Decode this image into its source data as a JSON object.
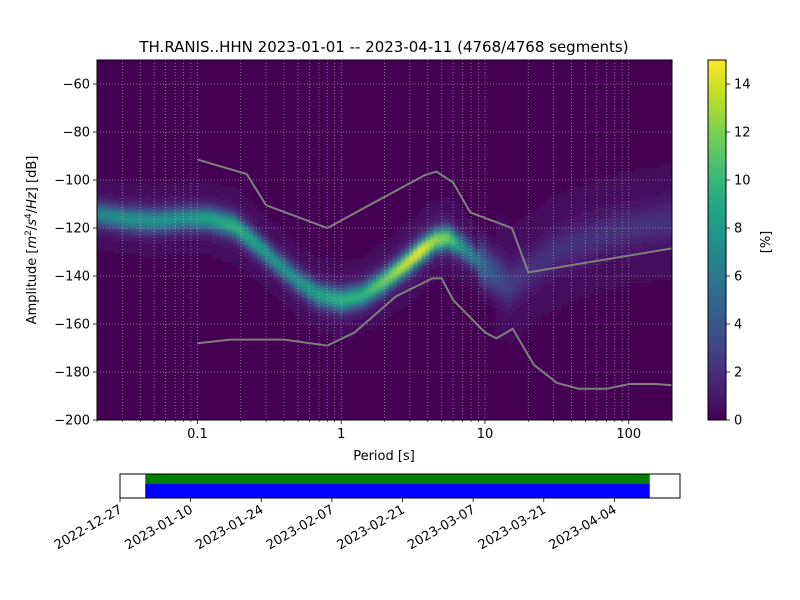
{
  "chart_data": [
    {
      "type": "heatmap",
      "title": "TH.RANIS..HHN   2023-01-01 -- 2023-04-11  (4768/4768 segments)",
      "xlabel": "Period [s]",
      "ylabel_parts": [
        "Amplitude [",
        "m",
        "2",
        "/",
        "s",
        "4",
        "/",
        "Hz",
        "] [dB]"
      ],
      "x_scale": "log",
      "xlim": [
        0.02,
        200
      ],
      "ylim": [
        -200,
        -50
      ],
      "x_ticks": [
        {
          "value": 0.1,
          "label": "0.1"
        },
        {
          "value": 1,
          "label": "1"
        },
        {
          "value": 10,
          "label": "10"
        },
        {
          "value": 100,
          "label": "100"
        }
      ],
      "y_ticks": [
        {
          "value": -60,
          "label": "−60"
        },
        {
          "value": -80,
          "label": "−80"
        },
        {
          "value": -100,
          "label": "−100"
        },
        {
          "value": -120,
          "label": "−120"
        },
        {
          "value": -140,
          "label": "−140"
        },
        {
          "value": -160,
          "label": "−160"
        },
        {
          "value": -180,
          "label": "−180"
        },
        {
          "value": -200,
          "label": "−200"
        }
      ],
      "grid": true,
      "colorbar": {
        "label": "[%]",
        "range": [
          0,
          15
        ],
        "ticks": [
          {
            "value": 0,
            "label": "0"
          },
          {
            "value": 2,
            "label": "2"
          },
          {
            "value": 4,
            "label": "4"
          },
          {
            "value": 6,
            "label": "6"
          },
          {
            "value": 8,
            "label": "8"
          },
          {
            "value": 10,
            "label": "10"
          },
          {
            "value": 12,
            "label": "12"
          },
          {
            "value": 14,
            "label": "14"
          }
        ]
      },
      "density_ridge": {
        "period": [
          0.02,
          0.03,
          0.05,
          0.08,
          0.12,
          0.18,
          0.25,
          0.35,
          0.5,
          0.7,
          1.0,
          1.4,
          2.0,
          2.8,
          3.5,
          4.5,
          5.5,
          7.0,
          10,
          15,
          20,
          30,
          50,
          100,
          200
        ],
        "amplitude_db": [
          -114,
          -116,
          -117,
          -116,
          -116,
          -119,
          -126,
          -134,
          -142,
          -148,
          -150,
          -148,
          -142,
          -135,
          -130,
          -125,
          -124,
          -128,
          -136,
          -144,
          -138,
          -130,
          -125,
          -120,
          -117
        ],
        "peak_percent": [
          6,
          7,
          7,
          7,
          8,
          9,
          8,
          7,
          7,
          8,
          9,
          9,
          11,
          13,
          14,
          12,
          11,
          7,
          4,
          2,
          1.5,
          1.5,
          1.5,
          1.5,
          1.5
        ]
      },
      "series": [
        {
          "period": [
            0.1,
            0.22,
            0.3,
            0.8,
            3.8,
            4.6,
            6.0,
            7.9,
            15.4,
            20.0,
            200.0
          ],
          "amplitude_db": [
            -91.5,
            -97.5,
            -110.5,
            -120,
            -98,
            -96.5,
            -101,
            -113.5,
            -120,
            -138.5,
            -128.5
          ]
        },
        {
          "period": [
            0.1,
            0.17,
            0.4,
            0.8,
            1.24,
            2.4,
            4.3,
            5.0,
            6.0,
            10.0,
            12.0,
            15.6,
            21.9,
            31.6,
            45.0,
            70.0,
            101.0,
            154.0,
            200.0
          ],
          "amplitude_db": [
            -168,
            -166.5,
            -166.5,
            -169,
            -163.5,
            -148.5,
            -141,
            -141,
            -150,
            -163.5,
            -166,
            -162,
            -177,
            -184.5,
            -187,
            -187,
            -185,
            -185,
            -185.5
          ]
        }
      ]
    },
    {
      "type": "timeline",
      "x_ticks": [
        {
          "value": "2022-12-27",
          "label": "2022-12-27"
        },
        {
          "value": "2023-01-10",
          "label": "2023-01-10"
        },
        {
          "value": "2023-01-24",
          "label": "2023-01-24"
        },
        {
          "value": "2023-02-07",
          "label": "2023-02-07"
        },
        {
          "value": "2023-02-21",
          "label": "2023-02-21"
        },
        {
          "value": "2023-03-07",
          "label": "2023-03-07"
        },
        {
          "value": "2023-03-21",
          "label": "2023-03-21"
        },
        {
          "value": "2023-04-04",
          "label": "2023-04-04"
        }
      ],
      "xlim": [
        "2022-12-27",
        "2023-04-17"
      ],
      "coverage": [
        {
          "start": "2023-01-01",
          "end": "2023-04-11",
          "color": "#0000ff"
        },
        {
          "start": "2023-01-01",
          "end": "2023-04-11",
          "color": "#008000"
        }
      ]
    }
  ]
}
